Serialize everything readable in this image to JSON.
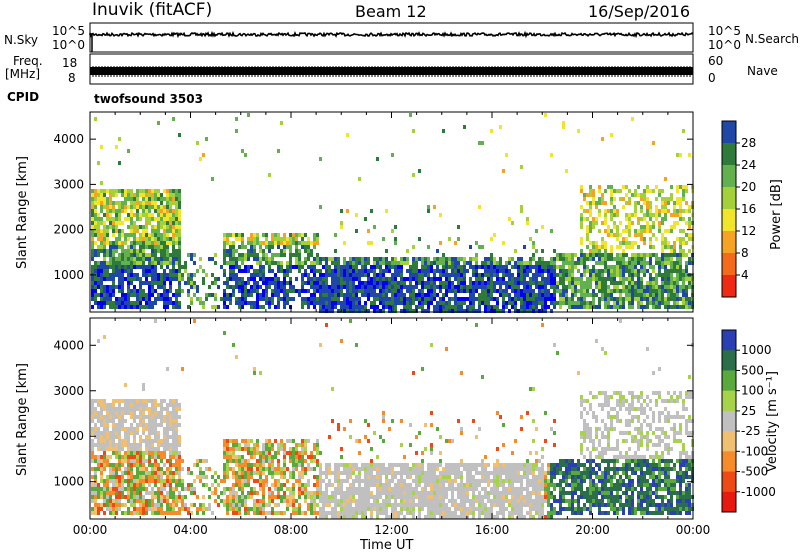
{
  "header": {
    "title": "Inuvik (fitACF)",
    "beam": "Beam 12",
    "date": "16/Sep/2016"
  },
  "top_panels": {
    "nsky_label": "N.Sky",
    "nsearch_label": "N.Search",
    "nsky_ticks": [
      "10^5",
      "10^0"
    ],
    "nsearch_ticks": [
      "10^5",
      "10^0"
    ],
    "freq_label": "Freq.",
    "freq_unit": "[MHz]",
    "freq_ticks": [
      "18",
      "8"
    ],
    "nave_label": "Nave",
    "nave_ticks": [
      "60",
      "0"
    ],
    "cpid_label": "CPID",
    "cpid_value": "twofsound 3503"
  },
  "chart_data": [
    {
      "type": "heatmap",
      "name_panel": "power",
      "ylabel": "Slant Range [km]",
      "yticks": [
        "4000",
        "3000",
        "2000",
        "1000"
      ],
      "ylim": [
        180,
        4600
      ],
      "colorbar_label": "Power [dB]",
      "colorbar_ticks": [
        "28",
        "24",
        "20",
        "16",
        "12",
        "8",
        "4"
      ],
      "colormap": [
        "#0000ee",
        "#1f47a8",
        "#2f7a3a",
        "#62b04e",
        "#a4d13a",
        "#f2e42a",
        "#f6a223",
        "#f36a1a",
        "#ee2a12"
      ]
    },
    {
      "type": "heatmap",
      "name_panel": "velocity",
      "ylabel": "Slant Range [km]",
      "yticks": [
        "4000",
        "3000",
        "2000",
        "1000"
      ],
      "ylim": [
        180,
        4600
      ],
      "xlabel": "Time UT",
      "xticks": [
        "00:00",
        "04:00",
        "08:00",
        "12:00",
        "16:00",
        "20:00",
        "00:00"
      ],
      "colorbar_label": "Velocity [m s⁻¹]",
      "colorbar_ticks": [
        "1000",
        "500",
        "100",
        "25",
        "-25",
        "-100",
        "-500",
        "-1000"
      ],
      "colormap": [
        "#2a3fb4",
        "#2a6e4a",
        "#5aa93c",
        "#a6d34a",
        "#c0c0c0",
        "#f0c070",
        "#f58b2a",
        "#ee4a16",
        "#e81a10"
      ]
    }
  ]
}
